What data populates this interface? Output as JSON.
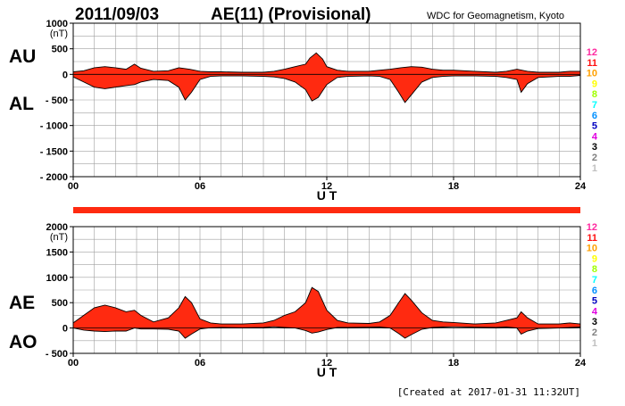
{
  "header": {
    "date": "2011/09/03",
    "title": "AE(11) (Provisional)",
    "source": "WDC for Geomagnetism, Kyoto"
  },
  "footer": {
    "created": "[Created at 2017-01-31 11:32UT]"
  },
  "colors": {
    "fill": "#ff2a10",
    "trace": "#000000",
    "grid": "#a0a0a0",
    "bar": "#ff2a10"
  },
  "station_legend": [
    {
      "label": "12",
      "color": "#ff2aa0"
    },
    {
      "label": "11",
      "color": "#ff1010"
    },
    {
      "label": "10",
      "color": "#ffa000"
    },
    {
      "label": "9",
      "color": "#ffff00"
    },
    {
      "label": "8",
      "color": "#a0ff00"
    },
    {
      "label": "7",
      "color": "#00ffff"
    },
    {
      "label": "6",
      "color": "#0090ff"
    },
    {
      "label": "5",
      "color": "#0000c0"
    },
    {
      "label": "4",
      "color": "#e000e0"
    },
    {
      "label": "3",
      "color": "#000000"
    },
    {
      "label": "2",
      "color": "#808080"
    },
    {
      "label": "1",
      "color": "#c0c0c0"
    }
  ],
  "chart_data": [
    {
      "type": "area",
      "name": "au-al",
      "upper_label": "AU",
      "lower_label": "AL",
      "unit": "(nT)",
      "xlabel": "U T",
      "xlim": [
        0,
        24
      ],
      "ylim": [
        -2000,
        1000
      ],
      "yticks": [
        {
          "v": 1000,
          "label": "1000"
        },
        {
          "v": 500,
          "label": "500"
        },
        {
          "v": 0,
          "label": "0"
        },
        {
          "v": -500,
          "label": "- 500"
        },
        {
          "v": -1000,
          "label": "- 1000"
        },
        {
          "v": -1500,
          "label": "- 1500"
        },
        {
          "v": -2000,
          "label": "- 2000"
        }
      ],
      "xticks": [
        {
          "v": 0,
          "label": "00"
        },
        {
          "v": 6,
          "label": "06"
        },
        {
          "v": 12,
          "label": "12"
        },
        {
          "v": 18,
          "label": "18"
        },
        {
          "v": 24,
          "label": "24"
        }
      ],
      "grid_x_step": 1,
      "grid_y_step": 250,
      "series": [
        {
          "name": "AU",
          "x": [
            0,
            0.5,
            1,
            1.5,
            2,
            2.5,
            2.9,
            3.2,
            3.8,
            4.5,
            5,
            5.5,
            6,
            6.5,
            7,
            8,
            9,
            9.5,
            10,
            10.5,
            11,
            11.2,
            11.5,
            11.8,
            12,
            12.5,
            13,
            14,
            14.5,
            15,
            15.5,
            16,
            16.5,
            17,
            17.5,
            18,
            19,
            20,
            20.5,
            21,
            21.5,
            22,
            22.5,
            23,
            23.5,
            24
          ],
          "values": [
            50,
            70,
            130,
            150,
            130,
            100,
            200,
            120,
            60,
            70,
            130,
            100,
            60,
            50,
            50,
            40,
            40,
            60,
            100,
            150,
            200,
            320,
            420,
            300,
            150,
            80,
            60,
            60,
            80,
            100,
            130,
            150,
            140,
            100,
            80,
            80,
            60,
            40,
            60,
            100,
            60,
            40,
            40,
            40,
            60,
            60
          ]
        },
        {
          "name": "AL",
          "x": [
            0,
            0.5,
            1,
            1.5,
            2,
            2.5,
            2.9,
            3.2,
            3.8,
            4.5,
            5,
            5.3,
            5.6,
            6,
            6.5,
            7,
            8,
            9,
            9.5,
            10,
            10.5,
            11,
            11.3,
            11.6,
            12,
            12.5,
            13,
            14,
            14.5,
            15,
            15.4,
            15.7,
            16,
            16.5,
            17,
            17.5,
            18,
            19,
            20,
            20.5,
            21,
            21.2,
            21.5,
            22,
            22.5,
            23,
            23.5,
            24
          ],
          "values": [
            -50,
            -150,
            -250,
            -280,
            -250,
            -220,
            -200,
            -150,
            -100,
            -120,
            -250,
            -500,
            -350,
            -100,
            -40,
            -30,
            -30,
            -40,
            -50,
            -80,
            -150,
            -300,
            -520,
            -450,
            -200,
            -60,
            -40,
            -30,
            -40,
            -100,
            -350,
            -550,
            -400,
            -150,
            -60,
            -40,
            -30,
            -30,
            -40,
            -60,
            -100,
            -350,
            -180,
            -60,
            -50,
            -40,
            -40,
            -20
          ]
        }
      ]
    },
    {
      "type": "area",
      "name": "ae-ao",
      "upper_label": "AE",
      "lower_label": "AO",
      "unit": "(nT)",
      "xlabel": "U T",
      "xlim": [
        0,
        24
      ],
      "ylim": [
        -500,
        2000
      ],
      "yticks": [
        {
          "v": 2000,
          "label": "2000"
        },
        {
          "v": 1500,
          "label": "1500"
        },
        {
          "v": 1000,
          "label": "1000"
        },
        {
          "v": 500,
          "label": "500"
        },
        {
          "v": 0,
          "label": "0"
        },
        {
          "v": -500,
          "label": "- 500"
        }
      ],
      "xticks": [
        {
          "v": 0,
          "label": "00"
        },
        {
          "v": 6,
          "label": "06"
        },
        {
          "v": 12,
          "label": "12"
        },
        {
          "v": 18,
          "label": "18"
        },
        {
          "v": 24,
          "label": "24"
        }
      ],
      "grid_x_step": 1,
      "grid_y_step": 250,
      "series": [
        {
          "name": "AE",
          "x": [
            0,
            0.5,
            1,
            1.5,
            2,
            2.5,
            2.9,
            3.2,
            3.8,
            4.5,
            5,
            5.3,
            5.6,
            6,
            6.5,
            7,
            8,
            9,
            9.5,
            10,
            10.5,
            11,
            11.3,
            11.6,
            12,
            12.5,
            13,
            14,
            14.5,
            15,
            15.4,
            15.7,
            16,
            16.5,
            17,
            17.5,
            18,
            19,
            20,
            20.5,
            21,
            21.2,
            21.5,
            22,
            22.5,
            23,
            23.5,
            24
          ],
          "values": [
            100,
            250,
            400,
            450,
            400,
            320,
            350,
            250,
            120,
            200,
            400,
            620,
            500,
            180,
            100,
            80,
            80,
            100,
            150,
            250,
            320,
            500,
            800,
            720,
            350,
            150,
            100,
            90,
            120,
            250,
            500,
            680,
            550,
            300,
            150,
            120,
            110,
            80,
            100,
            150,
            200,
            320,
            200,
            80,
            80,
            80,
            100,
            80
          ]
        },
        {
          "name": "AO",
          "x": [
            0,
            0.5,
            1,
            1.5,
            2,
            2.5,
            2.9,
            3.2,
            3.8,
            4.5,
            5,
            5.3,
            5.6,
            6,
            6.5,
            7,
            8,
            9,
            9.5,
            10,
            10.5,
            11,
            11.3,
            11.6,
            12,
            12.5,
            13,
            14,
            14.5,
            15,
            15.4,
            15.7,
            16,
            16.5,
            17,
            17.5,
            18,
            19,
            20,
            20.5,
            21,
            21.2,
            21.5,
            22,
            22.5,
            23,
            23.5,
            24
          ],
          "values": [
            0,
            -40,
            -60,
            -70,
            -60,
            -60,
            0,
            -20,
            -20,
            -25,
            -60,
            -200,
            -120,
            -20,
            5,
            10,
            5,
            10,
            25,
            10,
            0,
            -50,
            -100,
            -80,
            -30,
            10,
            10,
            15,
            20,
            0,
            -110,
            -200,
            -130,
            -25,
            10,
            20,
            25,
            15,
            10,
            20,
            0,
            -120,
            -60,
            -10,
            -5,
            0,
            10,
            20
          ]
        }
      ]
    }
  ]
}
